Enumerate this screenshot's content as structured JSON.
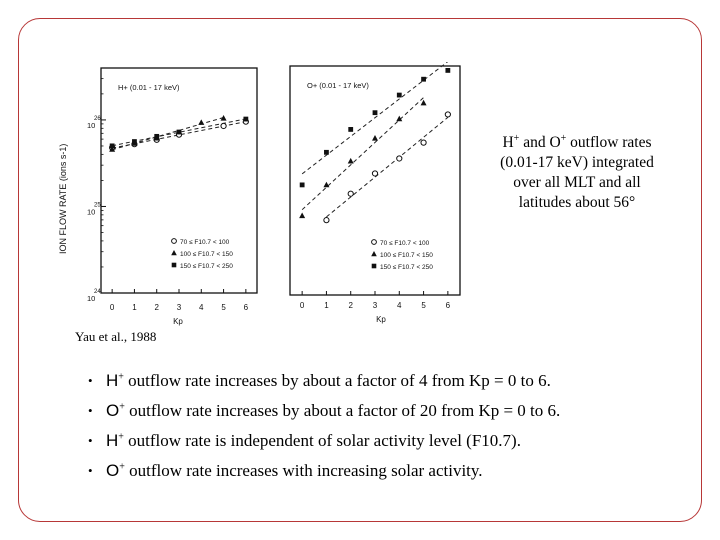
{
  "caption": {
    "line1_ion_h": "H",
    "line1_and": " and ",
    "line1_ion_o": "O",
    "line1_rest": " outflow rates",
    "line2": "(0.01-17 keV) integrated",
    "line3": "over all MLT and all",
    "line4": "latitudes about 56°"
  },
  "citation": "Yau et al., 1988",
  "bullets": [
    {
      "ion": "H",
      "text": " outflow rate increases by about a factor of 4 from Kp = 0 to 6."
    },
    {
      "ion": "O",
      "text": " outflow rate increases by about a factor of 20 from Kp = 0 to 6."
    },
    {
      "ion": "H",
      "text": " outflow rate is independent of solar activity level (F10.7)."
    },
    {
      "ion": "O",
      "text": " outflow rate increases with increasing solar activity."
    }
  ],
  "bullet_symbol": "•",
  "charge": "+",
  "chart_data": [
    {
      "type": "scatter",
      "title": "H+ (0.01 - 17 keV)",
      "xlabel": "Kp",
      "ylabel": "ION FLOW RATE (ions s-1)",
      "y_scale": "log",
      "xlim": [
        -0.5,
        6.5
      ],
      "ylim_exponent": [
        24,
        26.6
      ],
      "x_ticks": [
        "0",
        "1",
        "2",
        "3",
        "4",
        "5",
        "6"
      ],
      "y_ticks": [
        {
          "base": "10",
          "exp": "24"
        },
        {
          "base": "10",
          "exp": "25"
        },
        {
          "base": "10",
          "exp": "26"
        }
      ],
      "legend": [
        "70 ≤ F10.7 < 100",
        "100 ≤ F10.7 < 150",
        "150 ≤ F10.7 < 250"
      ],
      "legend_position": "bottom-right",
      "series": [
        {
          "marker": "circle-open",
          "points": [
            [
              0,
              25.68
            ],
            [
              1,
              25.72
            ],
            [
              2,
              25.77
            ],
            [
              3,
              25.83
            ],
            [
              5,
              25.93
            ],
            [
              6,
              25.98
            ]
          ]
        },
        {
          "marker": "triangle-filled",
          "points": [
            [
              0,
              25.66
            ],
            [
              1,
              25.73
            ],
            [
              2,
              25.79
            ],
            [
              4,
              25.97
            ],
            [
              5,
              26.02
            ]
          ]
        },
        {
          "marker": "square-filled",
          "points": [
            [
              0,
              25.7
            ],
            [
              1,
              25.75
            ],
            [
              2,
              25.81
            ],
            [
              3,
              25.86
            ],
            [
              6,
              26.01
            ]
          ]
        }
      ]
    },
    {
      "type": "scatter",
      "title": "O+ (0.01 - 17 keV)",
      "xlabel": "Kp",
      "y_scale": "log",
      "xlim": [
        -0.5,
        6.5
      ],
      "ylim_exponent": [
        24,
        26.6
      ],
      "x_ticks": [
        "0",
        "1",
        "2",
        "3",
        "4",
        "5",
        "6"
      ],
      "legend": [
        "70 ≤ F10.7 < 100",
        "100 ≤ F10.7 < 150",
        "150 ≤ F10.7 < 250"
      ],
      "legend_position": "bottom-right",
      "series": [
        {
          "marker": "circle-open",
          "points": [
            [
              1,
              24.85
            ],
            [
              2,
              25.15
            ],
            [
              3,
              25.38
            ],
            [
              4,
              25.55
            ],
            [
              5,
              25.73
            ],
            [
              6,
              26.05
            ]
          ]
        },
        {
          "marker": "triangle-filled",
          "points": [
            [
              0,
              24.9
            ],
            [
              1,
              25.25
            ],
            [
              2,
              25.52
            ],
            [
              3,
              25.78
            ],
            [
              4,
              26.0
            ],
            [
              5,
              26.18
            ]
          ]
        },
        {
          "marker": "square-filled",
          "points": [
            [
              0,
              25.25
            ],
            [
              1,
              25.62
            ],
            [
              2,
              25.88
            ],
            [
              3,
              26.07
            ],
            [
              4,
              26.27
            ],
            [
              5,
              26.45
            ],
            [
              6,
              26.55
            ]
          ]
        }
      ]
    }
  ]
}
